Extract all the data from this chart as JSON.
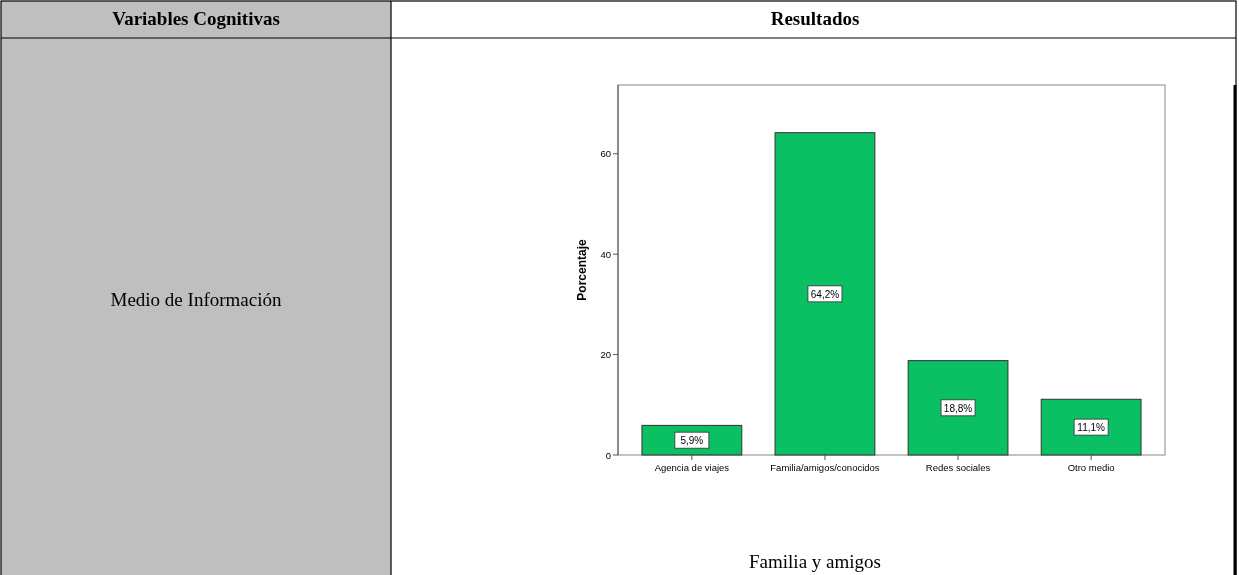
{
  "chart_data": {
    "type": "bar",
    "ylabel": "Porcentaje",
    "categories": [
      "Agencia de viajes",
      "Familia/amigos/conocidos",
      "Redes sociales",
      "Otro medio"
    ],
    "values": [
      5.9,
      64.2,
      18.8,
      11.1
    ],
    "value_labels": [
      "5,9%",
      "64,2%",
      "18,8%",
      "11,1%"
    ],
    "color": "#0bbf63",
    "ylim": [
      0,
      73.7
    ],
    "yticks": [
      0,
      20,
      40,
      60
    ],
    "grid": false,
    "annotations": [
      "Variables Cognitivas",
      "Resultados",
      "Medio de Información",
      "Familia y amigos"
    ]
  }
}
